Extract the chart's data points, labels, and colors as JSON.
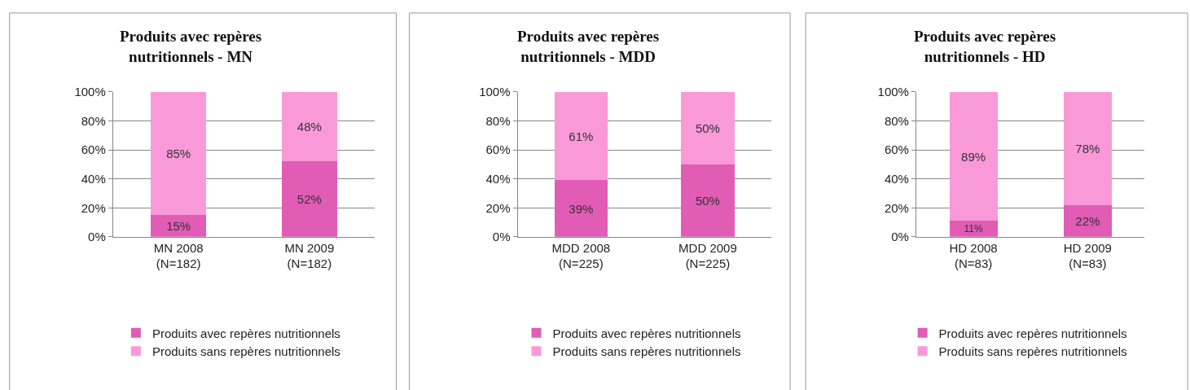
{
  "chart_data": [
    {
      "type": "bar",
      "stacked": true,
      "title": "Produits avec repères\nnutritionnels - MN",
      "categories": [
        "MN 2008\n(N=182)",
        "MN 2009\n(N=182)"
      ],
      "series": [
        {
          "name": "Produits avec repères nutritionnels",
          "color": "#e05cb5",
          "values": [
            15,
            52
          ],
          "value_labels": [
            "15%",
            "52%"
          ]
        },
        {
          "name": "Produits sans repères nutritionnels",
          "color": "#fa99d8",
          "values": [
            85,
            48
          ],
          "value_labels": [
            "85%",
            "48%"
          ]
        }
      ],
      "ylim": [
        0,
        100
      ],
      "yticks": [
        {
          "value": 0,
          "label": "0%"
        },
        {
          "value": 20,
          "label": "20%"
        },
        {
          "value": 40,
          "label": "40%"
        },
        {
          "value": 60,
          "label": "60%"
        },
        {
          "value": 80,
          "label": "80%"
        },
        {
          "value": 100,
          "label": "100%"
        }
      ],
      "grid": "y",
      "legend": "bottom"
    },
    {
      "type": "bar",
      "stacked": true,
      "title": "Produits avec repères\nnutritionnels - MDD",
      "categories": [
        "MDD 2008\n(N=225)",
        "MDD 2009\n(N=225)"
      ],
      "series": [
        {
          "name": "Produits avec repères nutritionnels",
          "color": "#e05cb5",
          "values": [
            39,
            50
          ],
          "value_labels": [
            "39%",
            "50%"
          ]
        },
        {
          "name": "Produits sans repères nutritionnels",
          "color": "#fa99d8",
          "values": [
            61,
            50
          ],
          "value_labels": [
            "61%",
            "50%"
          ]
        }
      ],
      "ylim": [
        0,
        100
      ],
      "yticks": [
        {
          "value": 0,
          "label": "0%"
        },
        {
          "value": 20,
          "label": "20%"
        },
        {
          "value": 40,
          "label": "40%"
        },
        {
          "value": 60,
          "label": "60%"
        },
        {
          "value": 80,
          "label": "80%"
        },
        {
          "value": 100,
          "label": "100%"
        }
      ],
      "grid": "y",
      "legend": "bottom"
    },
    {
      "type": "bar",
      "stacked": true,
      "title": "Produits avec repères\nnutritionnels - HD",
      "categories": [
        "HD 2008\n(N=83)",
        "HD 2009\n(N=83)"
      ],
      "series": [
        {
          "name": "Produits avec repères nutritionnels",
          "color": "#e05cb5",
          "values": [
            11,
            22
          ],
          "value_labels": [
            "11%",
            "22%"
          ]
        },
        {
          "name": "Produits sans repères nutritionnels",
          "color": "#fa99d8",
          "values": [
            89,
            78
          ],
          "value_labels": [
            "89%",
            "78%"
          ]
        }
      ],
      "ylim": [
        0,
        100
      ],
      "yticks": [
        {
          "value": 0,
          "label": "0%"
        },
        {
          "value": 20,
          "label": "20%"
        },
        {
          "value": 40,
          "label": "40%"
        },
        {
          "value": 60,
          "label": "60%"
        },
        {
          "value": 80,
          "label": "80%"
        },
        {
          "value": 100,
          "label": "100%"
        }
      ],
      "grid": "y",
      "legend": "bottom"
    }
  ]
}
